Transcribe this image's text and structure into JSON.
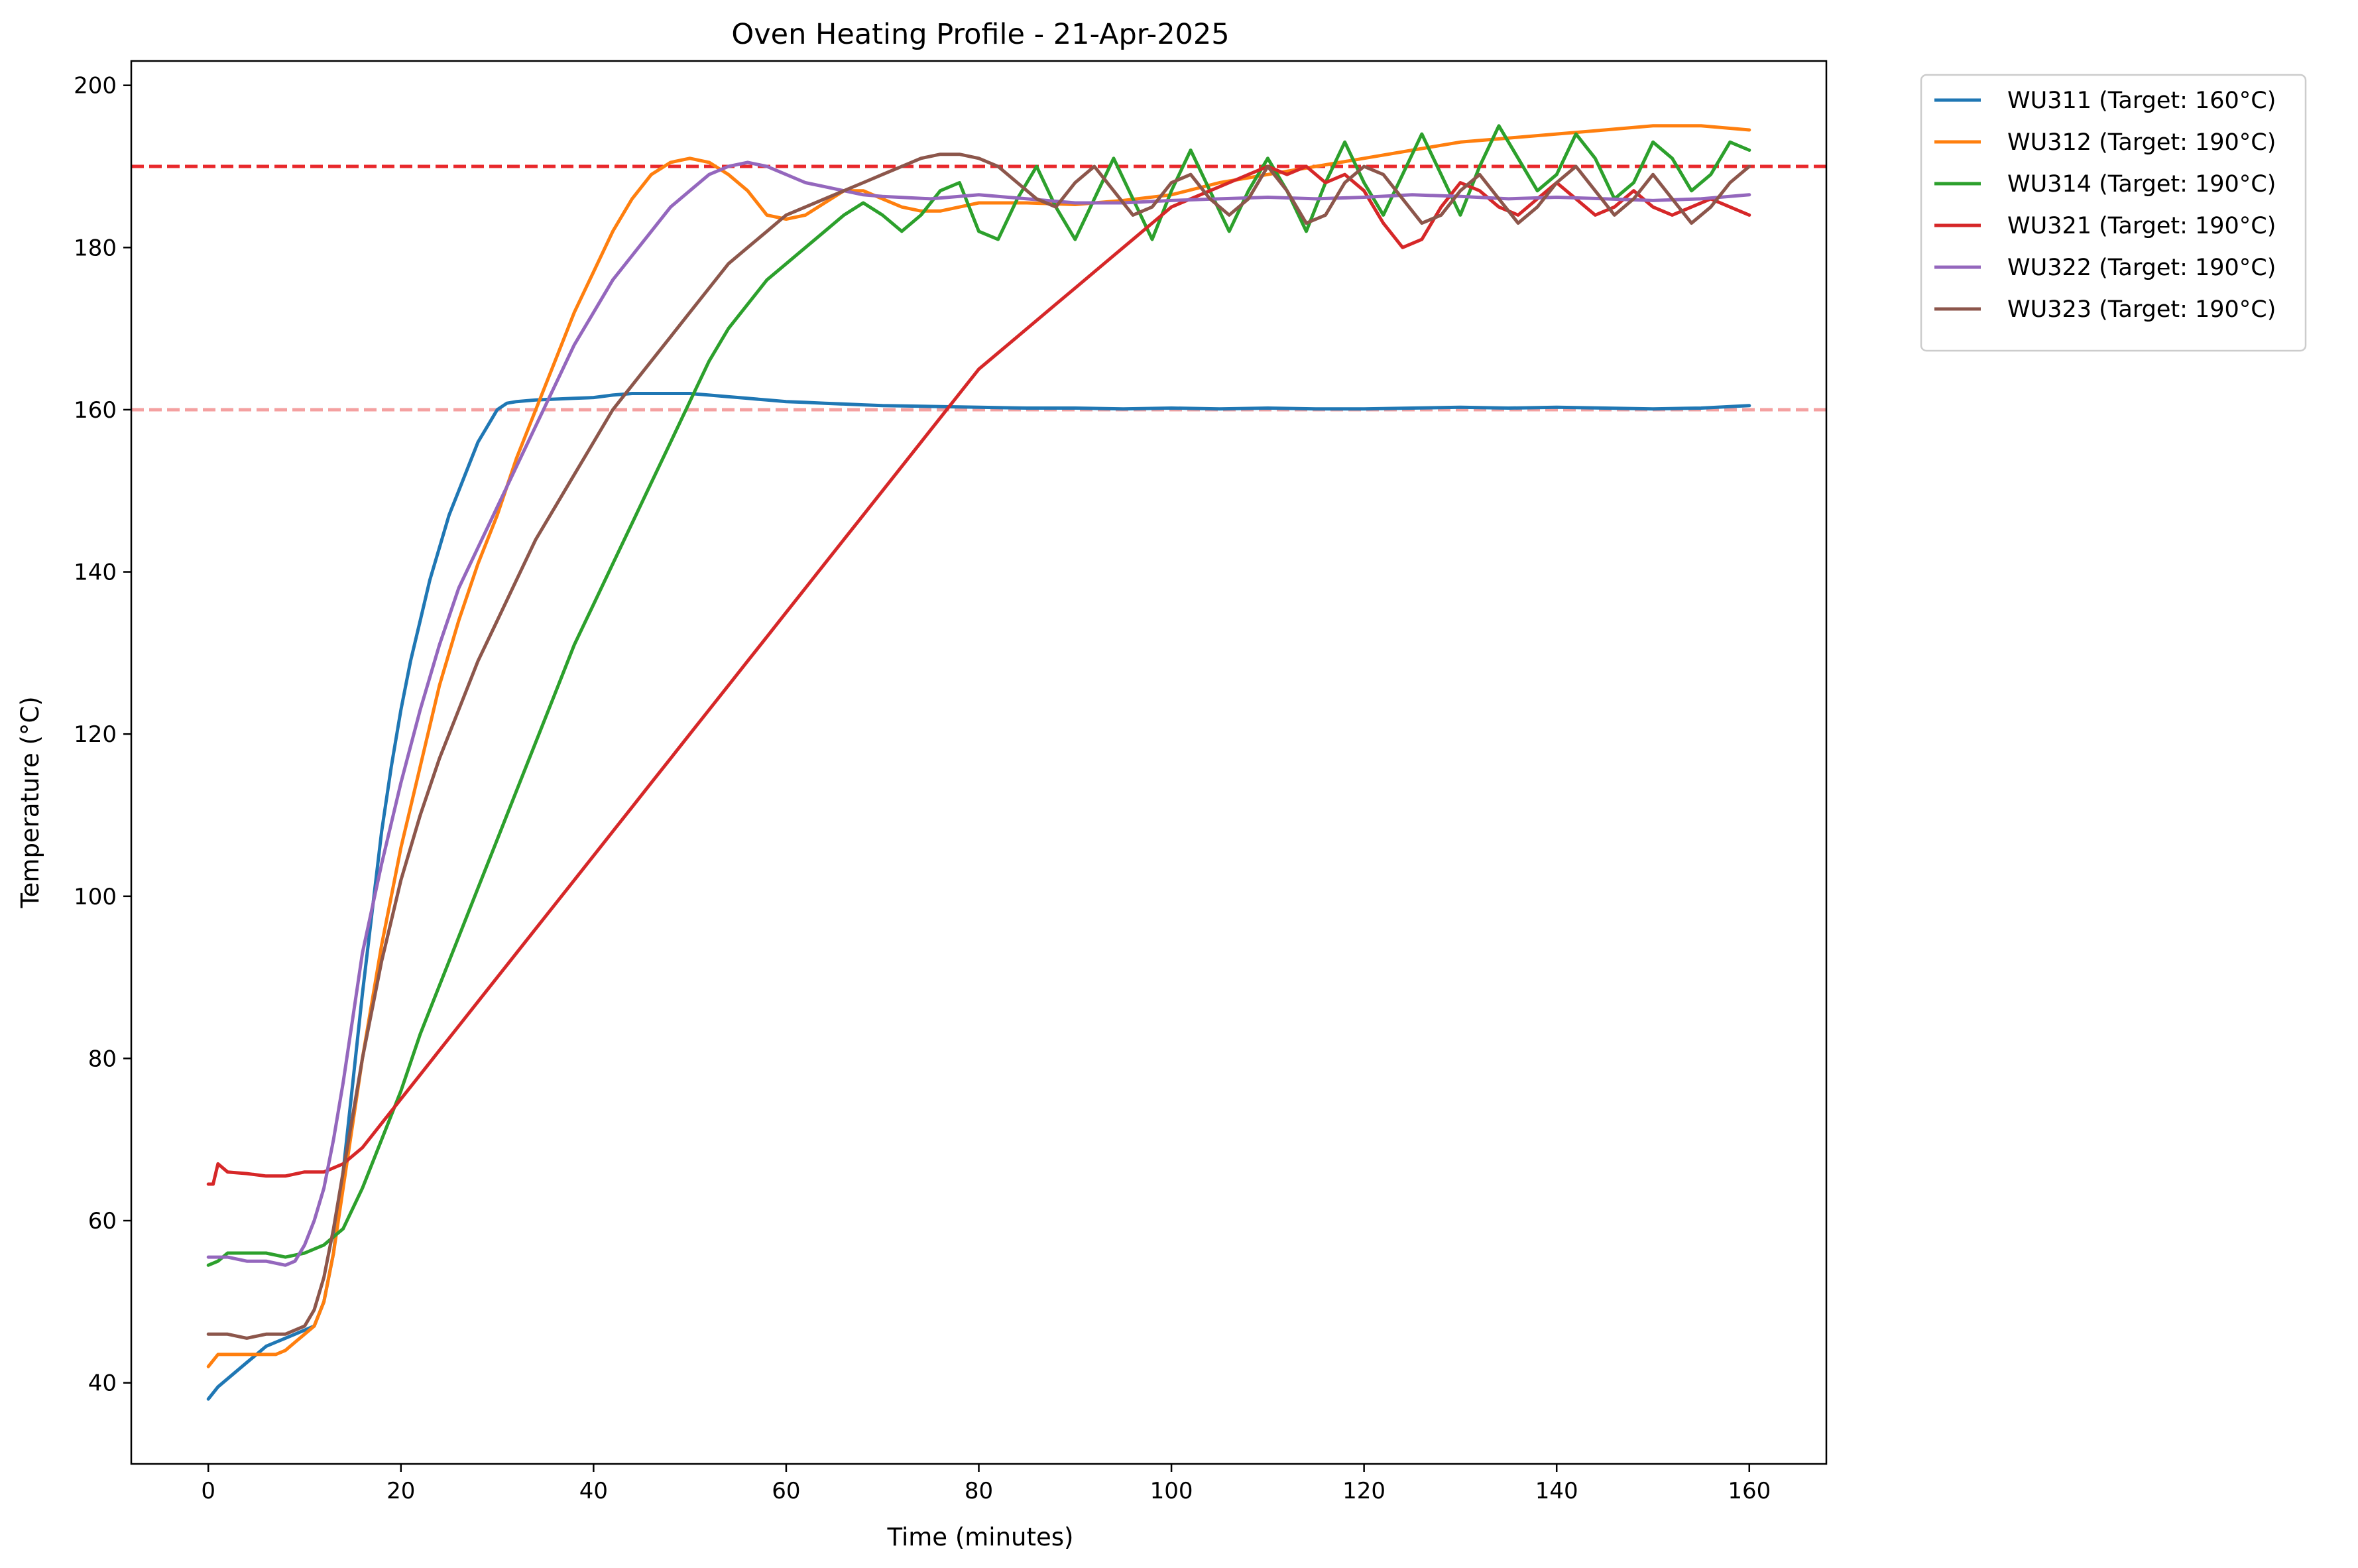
{
  "chart_data": {
    "type": "line",
    "title": "Oven Heating Profile - 21-Apr-2025",
    "xlabel": "Time (minutes)",
    "ylabel": "Temperature (°C)",
    "xlim": [
      -8,
      168
    ],
    "ylim": [
      30,
      203
    ],
    "xticks": [
      0,
      20,
      40,
      60,
      80,
      100,
      120,
      140,
      160
    ],
    "yticks": [
      40,
      60,
      80,
      100,
      120,
      140,
      160,
      180,
      200
    ],
    "grid": false,
    "legend_position": "outside-top-right",
    "reference_lines": [
      {
        "y": 190,
        "color": "#e8282b",
        "opacity": 1.0,
        "style": "dashed"
      },
      {
        "y": 160,
        "color": "#f4a0a0",
        "opacity": 1.0,
        "style": "dashed"
      }
    ],
    "series": [
      {
        "name": "WU311 (Target: 160°C)",
        "color": "#1f77b4",
        "x": [
          0,
          1,
          2,
          3,
          4,
          5,
          6,
          7,
          8,
          9,
          10,
          11,
          12,
          13,
          14,
          15,
          16,
          17,
          18,
          19,
          20,
          21,
          22,
          23,
          24,
          25,
          26,
          27,
          28,
          29,
          30,
          31,
          32,
          34,
          36,
          38,
          40,
          42,
          44,
          46,
          48,
          50,
          52,
          54,
          56,
          58,
          60,
          62,
          64,
          66,
          68,
          70,
          75,
          80,
          85,
          90,
          95,
          100,
          105,
          110,
          115,
          120,
          125,
          130,
          135,
          140,
          145,
          150,
          155,
          160
        ],
        "y": [
          38,
          39.5,
          40.5,
          41.5,
          42.5,
          43.5,
          44.5,
          45,
          45.5,
          46,
          46.5,
          47,
          50,
          56,
          66,
          77,
          88,
          98,
          108,
          116,
          123,
          129,
          134,
          139,
          143,
          147,
          150,
          153,
          156,
          158,
          160,
          160.8,
          161,
          161.2,
          161.3,
          161.4,
          161.5,
          161.8,
          162,
          162,
          162,
          162,
          161.8,
          161.6,
          161.4,
          161.2,
          161,
          160.9,
          160.8,
          160.7,
          160.6,
          160.5,
          160.4,
          160.3,
          160.2,
          160.2,
          160.1,
          160.2,
          160.1,
          160.2,
          160.1,
          160.1,
          160.2,
          160.3,
          160.2,
          160.3,
          160.2,
          160.1,
          160.2,
          160.5
        ]
      },
      {
        "name": "WU312 (Target: 190°C)",
        "color": "#ff7f0e",
        "x": [
          0,
          1,
          2,
          3,
          4,
          5,
          6,
          7,
          8,
          9,
          10,
          11,
          12,
          13,
          14,
          15,
          16,
          17,
          18,
          19,
          20,
          22,
          24,
          26,
          28,
          30,
          32,
          34,
          36,
          38,
          40,
          42,
          44,
          46,
          48,
          50,
          52,
          54,
          56,
          58,
          60,
          62,
          64,
          66,
          68,
          70,
          72,
          74,
          76,
          78,
          80,
          85,
          90,
          95,
          100,
          105,
          110,
          115,
          120,
          125,
          130,
          135,
          140,
          145,
          150,
          155,
          160
        ],
        "y": [
          42,
          43.5,
          43.5,
          43.5,
          43.5,
          43.5,
          43.5,
          43.5,
          44,
          45,
          46,
          47,
          50,
          56,
          64,
          72,
          80,
          87,
          94,
          100,
          106,
          116,
          126,
          134,
          141,
          147,
          154,
          160,
          166,
          172,
          177,
          182,
          186,
          189,
          190.5,
          191,
          190.5,
          189,
          187,
          184,
          183.5,
          184,
          185.5,
          187,
          187,
          186,
          185,
          184.5,
          184.5,
          185,
          185.5,
          185.5,
          185.3,
          185.8,
          186.5,
          188,
          189,
          190,
          191,
          192,
          193,
          193.5,
          194,
          194.5,
          195,
          195,
          194.5
        ]
      },
      {
        "name": "WU314 (Target: 190°C)",
        "color": "#2ca02c",
        "x": [
          0,
          1,
          2,
          4,
          6,
          8,
          10,
          12,
          14,
          16,
          18,
          20,
          22,
          24,
          26,
          28,
          30,
          32,
          34,
          36,
          38,
          40,
          42,
          44,
          46,
          48,
          50,
          52,
          54,
          56,
          58,
          60,
          62,
          64,
          66,
          68,
          70,
          72,
          74,
          76,
          78,
          80,
          82,
          84,
          86,
          88,
          90,
          92,
          94,
          96,
          98,
          100,
          102,
          104,
          106,
          108,
          110,
          112,
          114,
          116,
          118,
          120,
          122,
          124,
          126,
          128,
          130,
          132,
          134,
          136,
          138,
          140,
          142,
          144,
          146,
          148,
          150,
          152,
          154,
          156,
          158,
          160
        ],
        "y": [
          54.5,
          55,
          56,
          56,
          56,
          55.5,
          56,
          57,
          59,
          64,
          70,
          76,
          83,
          89,
          95,
          101,
          107,
          113,
          119,
          125,
          131,
          136,
          141,
          146,
          151,
          156,
          161,
          166,
          170,
          173,
          176,
          178,
          180,
          182,
          184,
          185.5,
          184,
          182,
          184,
          187,
          188,
          182,
          181,
          186,
          190,
          185,
          181,
          186,
          191,
          186,
          181,
          187,
          192,
          187,
          182,
          187,
          191,
          187,
          182,
          188,
          193,
          188,
          184,
          189,
          194,
          189,
          184,
          190,
          195,
          191,
          187,
          189,
          194,
          191,
          186,
          188,
          193,
          191,
          187,
          189,
          193,
          192
        ]
      },
      {
        "name": "WU321 (Target: 190°C)",
        "color": "#d62728",
        "x": [
          0,
          0.5,
          1,
          2,
          4,
          6,
          8,
          10,
          12,
          14,
          16,
          18,
          20,
          22,
          24,
          26,
          28,
          30,
          32,
          34,
          36,
          38,
          40,
          42,
          44,
          46,
          48,
          50,
          52,
          54,
          56,
          58,
          60,
          62,
          64,
          66,
          68,
          70,
          72,
          74,
          76,
          78,
          80,
          82,
          84,
          86,
          88,
          90,
          92,
          94,
          96,
          98,
          100,
          102,
          104,
          106,
          108,
          110,
          112,
          114,
          116,
          118,
          120,
          122,
          124,
          126,
          128,
          130,
          132,
          134,
          136,
          138,
          140,
          142,
          144,
          146,
          148,
          150,
          152,
          154,
          156,
          158,
          160
        ],
        "y": [
          64.5,
          64.5,
          67,
          66,
          65.8,
          65.5,
          65.5,
          66,
          66,
          67,
          69,
          72,
          75,
          78,
          81,
          84,
          87,
          90,
          93,
          96,
          99,
          102,
          105,
          108,
          111,
          114,
          117,
          120,
          123,
          126,
          129,
          132,
          135,
          138,
          141,
          144,
          147,
          150,
          153,
          156,
          159,
          162,
          165,
          167,
          169,
          171,
          173,
          175,
          177,
          179,
          181,
          183,
          185,
          186,
          187,
          188,
          189,
          190,
          189,
          190,
          188,
          189,
          187,
          183,
          180,
          181,
          185,
          188,
          187,
          185,
          184,
          186,
          188,
          186,
          184,
          185,
          187,
          185,
          184,
          185,
          186,
          185,
          184
        ]
      },
      {
        "name": "WU322 (Target: 190°C)",
        "color": "#9467bd",
        "x": [
          0,
          2,
          4,
          6,
          8,
          9,
          10,
          11,
          12,
          13,
          14,
          15,
          16,
          18,
          20,
          22,
          24,
          26,
          28,
          30,
          32,
          34,
          36,
          38,
          40,
          42,
          44,
          46,
          48,
          50,
          52,
          54,
          56,
          58,
          60,
          62,
          64,
          66,
          68,
          70,
          75,
          80,
          85,
          90,
          95,
          100,
          105,
          110,
          115,
          120,
          125,
          130,
          135,
          140,
          145,
          150,
          155,
          160
        ],
        "y": [
          55.5,
          55.5,
          55,
          55,
          54.5,
          55,
          57,
          60,
          64,
          70,
          77,
          85,
          93,
          104,
          114,
          123,
          131,
          138,
          143,
          148,
          153,
          158,
          163,
          168,
          172,
          176,
          179,
          182,
          185,
          187,
          189,
          190,
          190.5,
          190,
          189,
          188,
          187.5,
          187,
          186.5,
          186.3,
          186,
          186.5,
          186,
          185.5,
          185.5,
          185.8,
          186,
          186.2,
          186,
          186.2,
          186.5,
          186.3,
          186,
          186.2,
          186,
          185.8,
          186,
          186.5
        ]
      },
      {
        "name": "WU323 (Target: 190°C)",
        "color": "#8c564b",
        "x": [
          0,
          2,
          4,
          6,
          8,
          10,
          11,
          12,
          13,
          14,
          15,
          16,
          17,
          18,
          19,
          20,
          22,
          24,
          26,
          28,
          30,
          32,
          34,
          36,
          38,
          40,
          42,
          44,
          46,
          48,
          50,
          52,
          54,
          56,
          58,
          60,
          62,
          64,
          66,
          68,
          70,
          72,
          74,
          76,
          78,
          80,
          82,
          84,
          86,
          88,
          90,
          92,
          94,
          96,
          98,
          100,
          102,
          104,
          106,
          108,
          110,
          112,
          114,
          116,
          118,
          120,
          122,
          124,
          126,
          128,
          130,
          132,
          134,
          136,
          138,
          140,
          142,
          144,
          146,
          148,
          150,
          152,
          154,
          156,
          158,
          160
        ],
        "y": [
          46,
          46,
          45.5,
          46,
          46,
          47,
          49,
          53,
          59,
          66,
          73,
          80,
          86,
          92,
          97,
          102,
          110,
          117,
          123,
          129,
          134,
          139,
          144,
          148,
          152,
          156,
          160,
          163,
          166,
          169,
          172,
          175,
          178,
          180,
          182,
          184,
          185,
          186,
          187,
          188,
          189,
          190,
          191,
          191.5,
          191.5,
          191,
          190,
          188,
          186,
          185,
          188,
          190,
          187,
          184,
          185,
          188,
          189,
          186,
          184,
          186,
          190,
          187,
          183,
          184,
          188,
          190,
          189,
          186,
          183,
          184,
          187,
          189,
          186,
          183,
          185,
          188,
          190,
          187,
          184,
          186,
          189,
          186,
          183,
          185,
          188,
          190
        ]
      }
    ]
  }
}
